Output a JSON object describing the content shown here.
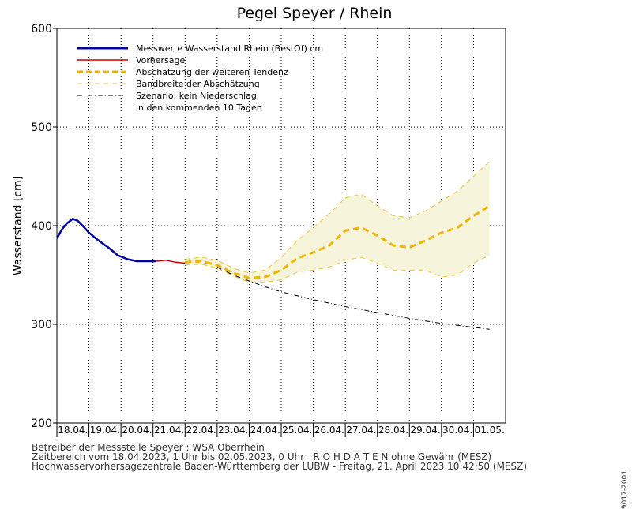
{
  "chart_data": {
    "type": "line",
    "title": "Pegel Speyer / Rhein",
    "ylabel": "Wasserstand [cm]",
    "ylim": [
      200,
      600
    ],
    "yticks": [
      200,
      300,
      400,
      500,
      600
    ],
    "x_range_days": [
      0,
      14
    ],
    "categories": [
      "18.04.",
      "19.04.",
      "20.04.",
      "21.04.",
      "22.04.",
      "23.04.",
      "24.04.",
      "25.04.",
      "26.04.",
      "27.04.",
      "28.04.",
      "29.04.",
      "30.04.",
      "01.05."
    ],
    "grid": true,
    "legend_position": "top-left",
    "legend": [
      {
        "label": "Messwerte Wasserstand Rhein (BestOf)   cm",
        "color": "#0000a0",
        "style": "solid-thick"
      },
      {
        "label": "Vorhersage",
        "color": "#cc0000",
        "style": "solid"
      },
      {
        "label": "Abschätzung der weiteren Tendenz",
        "color": "#f0b400",
        "style": "dashed-thick"
      },
      {
        "label": "Bandbreite der Abschätzung",
        "color": "#f0c040",
        "style": "dashed-thin"
      },
      {
        "label": "Szenario: kein Niederschlag",
        "color": "#000000",
        "style": "dashdot"
      },
      {
        "label": "in den kommenden 10 Tagen",
        "color": "",
        "style": "none"
      }
    ],
    "series": [
      {
        "name": "Messwerte Wasserstand Rhein (BestOf)",
        "x": [
          0,
          0.15,
          0.3,
          0.5,
          0.65,
          0.8,
          1.0,
          1.3,
          1.6,
          1.9,
          2.2,
          2.5,
          2.8,
          3.1
        ],
        "y": [
          387,
          396,
          402,
          407,
          405,
          400,
          393,
          385,
          378,
          370,
          366,
          364,
          364,
          364
        ]
      },
      {
        "name": "Vorhersage",
        "x": [
          3.1,
          3.4,
          3.7,
          4.0
        ],
        "y": [
          364,
          365,
          363,
          362
        ]
      },
      {
        "name": "Abschätzung der weiteren Tendenz",
        "x": [
          4.0,
          4.5,
          5.0,
          5.5,
          6.0,
          6.5,
          7.0,
          7.5,
          8.0,
          8.5,
          9.0,
          9.5,
          10.0,
          10.5,
          11.0,
          11.5,
          12.0,
          12.5,
          13.0,
          13.5
        ],
        "y": [
          363,
          364,
          360,
          352,
          347,
          348,
          355,
          367,
          373,
          380,
          395,
          398,
          390,
          380,
          378,
          385,
          393,
          398,
          410,
          420
        ]
      },
      {
        "name": "Bandbreite oben",
        "x": [
          4.0,
          4.5,
          5.0,
          5.5,
          6.0,
          6.5,
          7.0,
          7.5,
          8.0,
          8.5,
          9.0,
          9.5,
          10.0,
          10.5,
          11.0,
          11.5,
          12.0,
          12.5,
          13.0,
          13.5
        ],
        "y": [
          366,
          368,
          365,
          357,
          352,
          355,
          368,
          385,
          398,
          412,
          428,
          432,
          420,
          410,
          408,
          415,
          425,
          435,
          450,
          465
        ]
      },
      {
        "name": "Bandbreite unten",
        "x": [
          4.0,
          4.5,
          5.0,
          5.5,
          6.0,
          6.5,
          7.0,
          7.5,
          8.0,
          8.5,
          9.0,
          9.5,
          10.0,
          10.5,
          11.0,
          11.5,
          12.0,
          12.5,
          13.0,
          13.5
        ],
        "y": [
          360,
          361,
          357,
          349,
          343,
          343,
          345,
          353,
          355,
          358,
          365,
          368,
          362,
          355,
          355,
          355,
          348,
          350,
          362,
          370
        ]
      },
      {
        "name": "Szenario: kein Niederschlag",
        "x": [
          5.0,
          5.5,
          6.0,
          6.5,
          7.0,
          8.0,
          9.0,
          10.0,
          11.0,
          12.0,
          13.0,
          13.5
        ],
        "y": [
          358,
          350,
          344,
          338,
          333,
          325,
          318,
          312,
          306,
          301,
          297,
          295
        ]
      }
    ]
  },
  "footer": {
    "line1": "Betreiber der Messstelle Speyer : WSA Oberrhein",
    "line2": "Zeitbereich vom 18.04.2023, 1 Uhr bis 02.05.2023, 0 Uhr   R O H D A T E N ohne Gewähr (MESZ)",
    "line3": "Hochwasservorhersagezentrale Baden-Württemberg der LUBW - Freitag, 21. April 2023 10:42:50 (MESZ)",
    "code": "9017-2001"
  }
}
